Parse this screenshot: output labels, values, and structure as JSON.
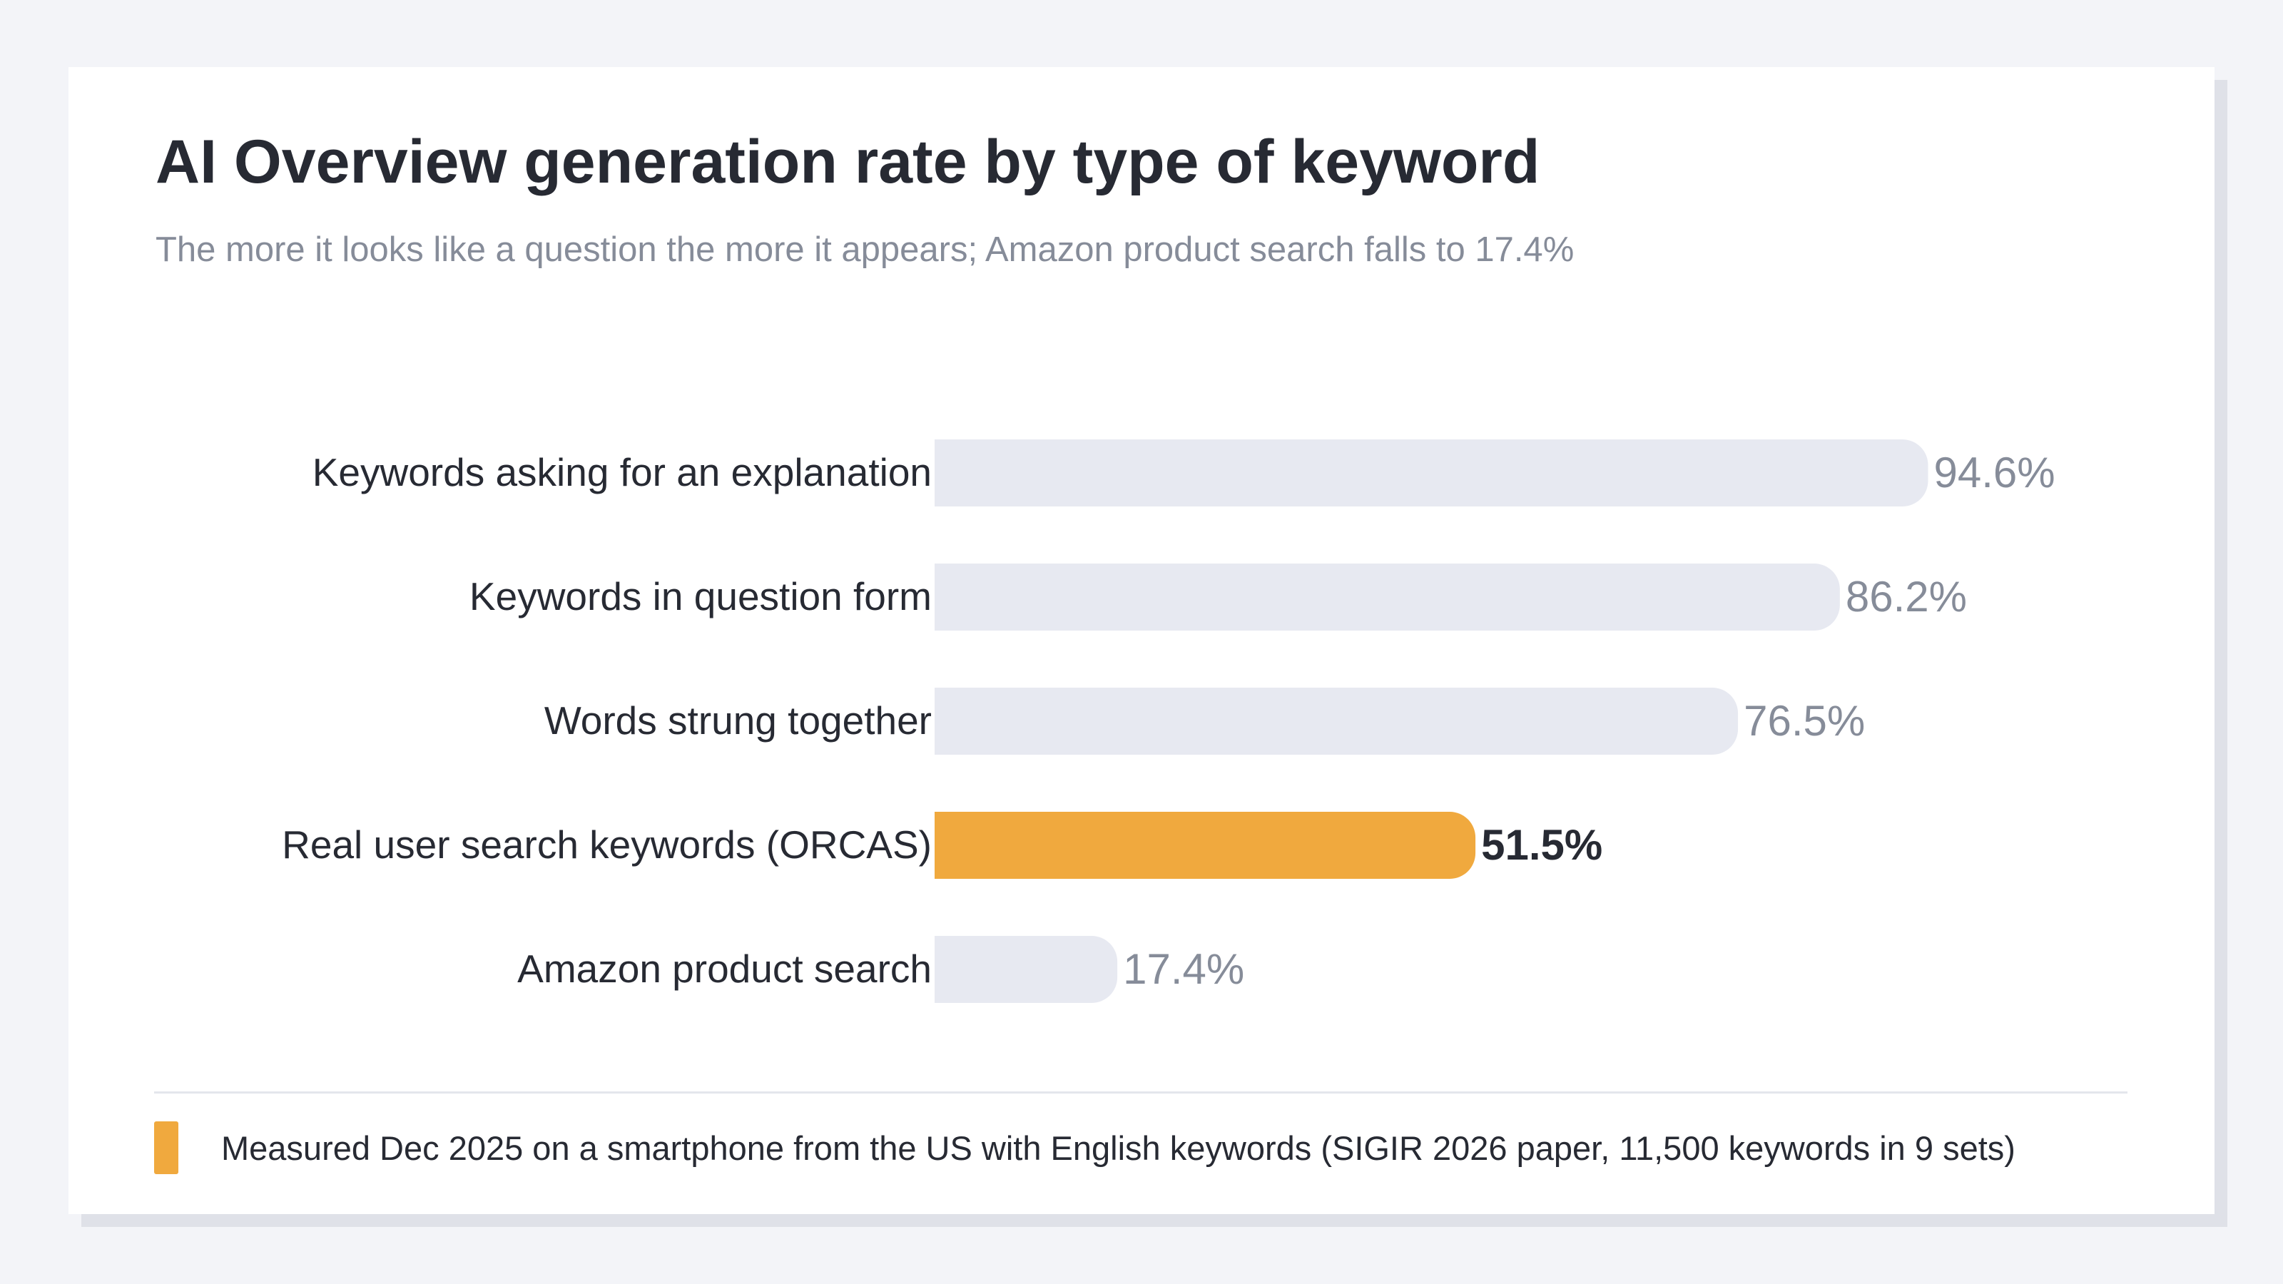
{
  "chart_data": {
    "type": "bar",
    "orientation": "horizontal",
    "title": "AI Overview generation rate by type of keyword",
    "subtitle": "The more it looks like a question the more it appears; Amazon product search falls to 17.4%",
    "xlim": [
      0,
      100
    ],
    "unit": "%",
    "highlight_index": 3,
    "categories": [
      "Keywords asking for an explanation",
      "Keywords in question form",
      "Words strung together",
      "Real user search keywords (ORCAS)",
      "Amazon product search"
    ],
    "values": [
      94.6,
      86.2,
      76.5,
      51.5,
      17.4
    ],
    "value_labels": [
      "94.6%",
      "86.2%",
      "76.5%",
      "51.5%",
      "17.4%"
    ]
  },
  "footer": {
    "note": "Measured Dec 2025 on a smartphone from the US with English keywords (SIGIR 2026 paper, 11,500 keywords in 9 sets)"
  },
  "colors": {
    "bar": "#e7e9f1",
    "highlight": "#f0a93e",
    "label": "#272a33",
    "value": "#868c99",
    "value_highlight": "#272a33"
  }
}
